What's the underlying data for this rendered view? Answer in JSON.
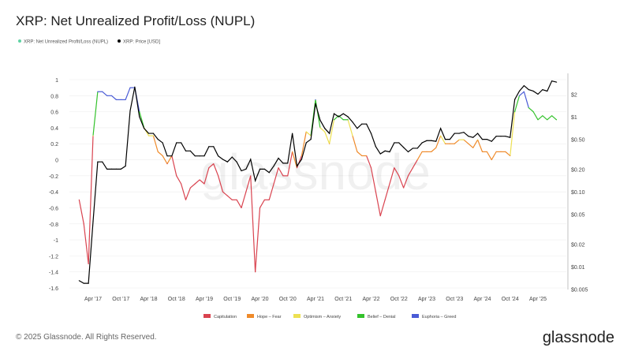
{
  "title": "XRP: Net Unrealized Profit/Loss (NUPL)",
  "legend_top": [
    {
      "label": "XRP: Net Unrealized Profit/Loss (NUPL)",
      "color": "#5fd3a4"
    },
    {
      "label": "XRP: Price [USD]",
      "color": "#000000"
    }
  ],
  "legend_bottom": [
    {
      "label": "Capitulation",
      "color": "#d9434f"
    },
    {
      "label": "Hope – Fear",
      "color": "#ef8a2a"
    },
    {
      "label": "Optimism – Anxiety",
      "color": "#ede052"
    },
    {
      "label": "Belief – Denial",
      "color": "#34c22c"
    },
    {
      "label": "Euphoria – Greed",
      "color": "#4a5bd6"
    }
  ],
  "watermark": "glassnode",
  "footer": {
    "copyright": "© 2025 Glassnode. All Rights Reserved.",
    "logo": "glassnode"
  },
  "chart_data": {
    "type": "line",
    "title": "XRP: Net Unrealized Profit/Loss (NUPL)",
    "x_start": "2017-01",
    "x_step": "month",
    "x_ticks": [
      "Apr '17",
      "Oct '17",
      "Apr '18",
      "Oct '18",
      "Apr '19",
      "Oct '19",
      "Apr '20",
      "Oct '20",
      "Apr '21",
      "Oct '21",
      "Apr '22",
      "Oct '22",
      "Apr '23",
      "Oct '23",
      "Apr '24",
      "Oct '24",
      "Apr '25"
    ],
    "y_left": {
      "ticks": [
        "1",
        "0.8",
        "0.6",
        "0.4",
        "0.2",
        "0",
        "-0.2",
        "-0.4",
        "-0.6",
        "-0.8",
        "-1",
        "-1.2",
        "-1.4",
        "-1.6"
      ],
      "range": [
        -1.6,
        1
      ]
    },
    "y_right": {
      "scale": "log",
      "ticks": [
        "$2",
        "$1",
        "$0.50",
        "$0.20",
        "$0.10",
        "$0.05",
        "$0.02",
        "$0.01",
        "$0.005"
      ],
      "tick_values": [
        2,
        1,
        0.5,
        0.2,
        0.1,
        0.05,
        0.02,
        0.01,
        0.005
      ]
    },
    "grid": true,
    "bands": [
      {
        "name": "Capitulation",
        "min": -2,
        "max": 0
      },
      {
        "name": "Hope – Fear",
        "min": 0,
        "max": 0.25
      },
      {
        "name": "Optimism – Anxiety",
        "min": 0.25,
        "max": 0.5
      },
      {
        "name": "Belief – Denial",
        "min": 0.5,
        "max": 0.75
      },
      {
        "name": "Euphoria – Greed",
        "min": 0.75,
        "max": 2
      }
    ],
    "series": [
      {
        "name": "XRP: Net Unrealized Profit/Loss (NUPL)",
        "values": [
          -0.5,
          -0.8,
          -1.3,
          0.3,
          0.85,
          0.85,
          0.8,
          0.8,
          0.75,
          0.75,
          0.75,
          0.9,
          0.9,
          0.6,
          0.4,
          0.3,
          0.3,
          0.1,
          0.05,
          -0.05,
          0.05,
          -0.2,
          -0.3,
          -0.5,
          -0.35,
          -0.3,
          -0.25,
          -0.3,
          -0.1,
          -0.05,
          -0.2,
          -0.4,
          -0.45,
          -0.5,
          -0.5,
          -0.6,
          -0.4,
          -0.2,
          -1.4,
          -0.6,
          -0.5,
          -0.5,
          -0.3,
          -0.1,
          -0.2,
          -0.2,
          0.1,
          -0.1,
          0.05,
          0.35,
          0.3,
          0.75,
          0.4,
          0.35,
          0.2,
          0.5,
          0.55,
          0.5,
          0.5,
          0.3,
          0.1,
          0.05,
          0.05,
          -0.1,
          -0.4,
          -0.7,
          -0.5,
          -0.3,
          -0.1,
          -0.2,
          -0.35,
          -0.2,
          -0.1,
          0.0,
          0.1,
          0.1,
          0.1,
          0.15,
          0.3,
          0.2,
          0.2,
          0.2,
          0.25,
          0.25,
          0.2,
          0.15,
          0.25,
          0.1,
          0.1,
          0.0,
          0.1,
          0.1,
          0.1,
          0.05,
          0.6,
          0.8,
          0.85,
          0.65,
          0.6,
          0.5,
          0.55,
          0.5,
          0.55,
          0.5
        ]
      },
      {
        "name": "XRP: Price [USD]",
        "color": "#000000",
        "values": [
          0.0065,
          0.006,
          0.006,
          0.04,
          0.25,
          0.25,
          0.2,
          0.2,
          0.2,
          0.2,
          0.22,
          1.2,
          2.5,
          1.0,
          0.7,
          0.6,
          0.6,
          0.5,
          0.45,
          0.3,
          0.3,
          0.45,
          0.45,
          0.35,
          0.35,
          0.3,
          0.3,
          0.3,
          0.4,
          0.4,
          0.3,
          0.27,
          0.25,
          0.29,
          0.25,
          0.19,
          0.2,
          0.27,
          0.14,
          0.2,
          0.2,
          0.18,
          0.22,
          0.28,
          0.24,
          0.24,
          0.6,
          0.22,
          0.27,
          0.45,
          0.5,
          1.5,
          0.9,
          0.7,
          0.6,
          1.1,
          1.0,
          1.1,
          1.0,
          0.85,
          0.7,
          0.8,
          0.8,
          0.6,
          0.4,
          0.32,
          0.35,
          0.34,
          0.45,
          0.45,
          0.39,
          0.34,
          0.38,
          0.38,
          0.45,
          0.48,
          0.48,
          0.47,
          0.7,
          0.5,
          0.5,
          0.6,
          0.6,
          0.62,
          0.55,
          0.53,
          0.6,
          0.5,
          0.5,
          0.47,
          0.55,
          0.55,
          0.55,
          0.53,
          1.7,
          2.2,
          2.6,
          2.3,
          2.2,
          2.0,
          2.3,
          2.2,
          3.0,
          2.9
        ]
      }
    ]
  }
}
